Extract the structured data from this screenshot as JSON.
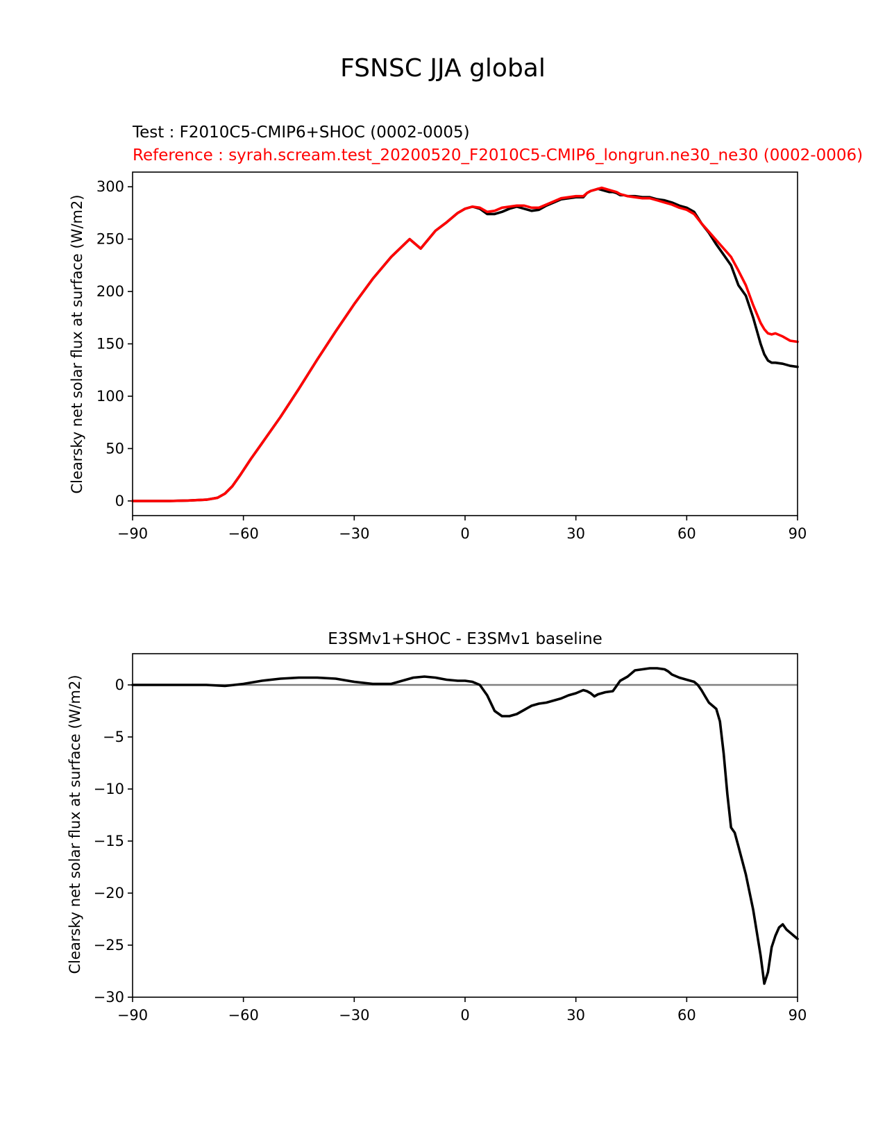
{
  "figure": {
    "title": "FSNSC JJA global"
  },
  "chart_data": [
    {
      "type": "line",
      "legend_test": "Test : F2010C5-CMIP6+SHOC (0002-0005)",
      "legend_reference": "Reference : syrah.scream.test_20200520_F2010C5-CMIP6_longrun.ne30_ne30 (0002-0006)",
      "ylabel": "Clearsky net solar flux at surface (W/m2)",
      "xlabel": "",
      "xlim": [
        -90,
        90
      ],
      "ylim": [
        -14,
        314
      ],
      "xticks": [
        -90,
        -60,
        -30,
        0,
        30,
        60,
        90
      ],
      "xtick_labels": [
        "−90",
        "−60",
        "−30",
        "0",
        "30",
        "60",
        "90"
      ],
      "yticks": [
        0,
        50,
        100,
        150,
        200,
        250,
        300
      ],
      "ytick_labels": [
        "0",
        "50",
        "100",
        "150",
        "200",
        "250",
        "300"
      ],
      "grid": false,
      "series": [
        {
          "name": "Test",
          "color": "#000000",
          "x": [
            -90,
            -85,
            -80,
            -75,
            -70,
            -67,
            -65,
            -63,
            -61,
            -58,
            -55,
            -50,
            -45,
            -40,
            -35,
            -30,
            -25,
            -20,
            -15,
            -12,
            -8,
            -5,
            -2,
            0,
            2,
            4,
            6,
            8,
            10,
            12,
            14,
            16,
            18,
            20,
            22,
            24,
            26,
            28,
            30,
            31,
            32,
            33,
            34,
            35,
            36,
            37,
            38,
            39,
            40,
            41,
            42,
            43,
            44,
            46,
            48,
            50,
            52,
            54,
            56,
            58,
            60,
            62,
            64,
            66,
            68,
            70,
            72,
            74,
            76,
            78,
            80,
            81,
            82,
            83,
            84,
            86,
            88,
            90
          ],
          "values": [
            0,
            0,
            0,
            0.4,
            1.2,
            3,
            7,
            14,
            24,
            40,
            55,
            80,
            107,
            135,
            162,
            188,
            212,
            233,
            250,
            241,
            258,
            266,
            275,
            279,
            281,
            279,
            274,
            274,
            276,
            279,
            281,
            279,
            277,
            278,
            282,
            285,
            288,
            289,
            290,
            290,
            290,
            294,
            296,
            297,
            298,
            297,
            296,
            295,
            295,
            294,
            292,
            292,
            291,
            291,
            290,
            290,
            288,
            287,
            285,
            282,
            280,
            276,
            265,
            256,
            245,
            235,
            225,
            206,
            196,
            175,
            150,
            140,
            134,
            132,
            132,
            131,
            129,
            128
          ]
        },
        {
          "name": "Reference",
          "color": "#ff0000",
          "x": [
            -90,
            -85,
            -80,
            -75,
            -70,
            -67,
            -65,
            -63,
            -61,
            -58,
            -55,
            -50,
            -45,
            -40,
            -35,
            -30,
            -25,
            -20,
            -15,
            -12,
            -8,
            -5,
            -2,
            0,
            2,
            4,
            6,
            8,
            10,
            12,
            14,
            16,
            18,
            20,
            22,
            24,
            26,
            28,
            30,
            31,
            32,
            33,
            34,
            35,
            36,
            37,
            38,
            39,
            40,
            41,
            42,
            43,
            44,
            46,
            48,
            50,
            52,
            54,
            56,
            58,
            60,
            62,
            64,
            66,
            68,
            70,
            72,
            74,
            76,
            78,
            80,
            81,
            82,
            83,
            84,
            86,
            88,
            90
          ],
          "values": [
            0,
            0,
            0,
            0.4,
            1.2,
            3,
            7,
            14,
            24,
            40,
            55,
            80,
            107,
            135,
            162,
            188,
            212,
            233,
            250,
            241,
            258,
            266,
            275,
            279,
            281,
            280,
            276,
            277,
            280,
            281,
            282,
            282,
            280,
            280,
            283,
            286,
            289,
            290,
            291,
            291,
            291,
            294,
            296,
            297,
            298,
            299,
            298,
            297,
            296,
            295,
            293,
            292,
            291,
            290,
            289,
            289,
            287,
            285,
            283,
            280,
            278,
            274,
            265,
            257,
            249,
            241,
            233,
            220,
            206,
            187,
            170,
            164,
            160,
            159,
            160,
            157,
            153,
            152
          ]
        }
      ]
    },
    {
      "type": "line",
      "title": "E3SMv1+SHOC - E3SMv1 baseline",
      "ylabel": "Clearsky net solar flux at surface (W/m2)",
      "xlabel": "",
      "xlim": [
        -90,
        90
      ],
      "ylim": [
        -30,
        3
      ],
      "xticks": [
        -90,
        -60,
        -30,
        0,
        30,
        60,
        90
      ],
      "xtick_labels": [
        "−90",
        "−60",
        "−30",
        "0",
        "30",
        "60",
        "90"
      ],
      "yticks": [
        0,
        -5,
        -10,
        -15,
        -20,
        -25,
        -30
      ],
      "ytick_labels": [
        "0",
        "−5",
        "−10",
        "−15",
        "−20",
        "−25",
        "−30"
      ],
      "grid": false,
      "zero_line_color": "#808080",
      "series": [
        {
          "name": "Difference",
          "color": "#000000",
          "x": [
            -90,
            -80,
            -70,
            -65,
            -60,
            -55,
            -50,
            -45,
            -40,
            -35,
            -30,
            -25,
            -20,
            -17,
            -14,
            -11,
            -8,
            -5,
            -2,
            0,
            2,
            4,
            6,
            8,
            10,
            12,
            14,
            16,
            18,
            20,
            22,
            24,
            26,
            28,
            30,
            32,
            33,
            34,
            35,
            36,
            37,
            38,
            40,
            42,
            44,
            46,
            48,
            50,
            52,
            54,
            55,
            56,
            58,
            60,
            62,
            63,
            64,
            65,
            66,
            68,
            69,
            70,
            71,
            72,
            73,
            74,
            76,
            78,
            80,
            81,
            82,
            83,
            84,
            85,
            86,
            87,
            88,
            89,
            90
          ],
          "values": [
            0,
            0,
            0,
            -0.1,
            0.1,
            0.4,
            0.6,
            0.7,
            0.7,
            0.6,
            0.3,
            0.1,
            0.1,
            0.4,
            0.7,
            0.8,
            0.7,
            0.5,
            0.4,
            0.4,
            0.3,
            0,
            -1.0,
            -2.5,
            -3.0,
            -3.0,
            -2.8,
            -2.4,
            -2.0,
            -1.8,
            -1.7,
            -1.5,
            -1.3,
            -1.0,
            -0.8,
            -0.5,
            -0.6,
            -0.8,
            -1.1,
            -0.9,
            -0.8,
            -0.7,
            -0.6,
            0.4,
            0.8,
            1.4,
            1.5,
            1.6,
            1.6,
            1.5,
            1.3,
            1.0,
            0.7,
            0.5,
            0.3,
            0.0,
            -0.5,
            -1.1,
            -1.7,
            -2.3,
            -3.5,
            -6.6,
            -10.5,
            -13.7,
            -14.2,
            -15.5,
            -18.2,
            -21.6,
            -26.0,
            -28.7,
            -27.6,
            -25.2,
            -24.1,
            -23.3,
            -23.0,
            -23.5,
            -23.8,
            -24.1,
            -24.4
          ]
        }
      ]
    }
  ]
}
